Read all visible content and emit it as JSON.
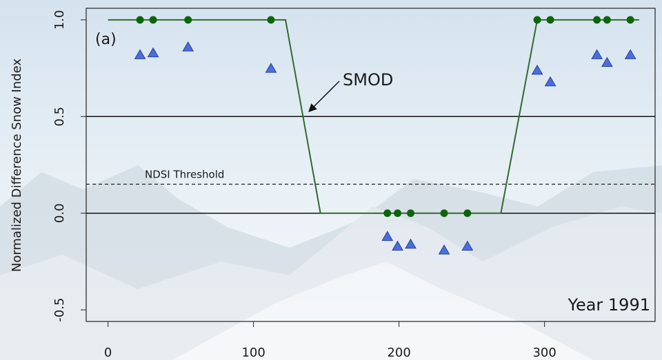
{
  "chart_data": {
    "type": "line",
    "ylabel": "Normalized Difference Snow Index",
    "panel_label": "(a)",
    "year_label": "Year 1991",
    "annotation": "SMOD",
    "threshold": {
      "label": "NDSI Threshold",
      "value": 0.15
    },
    "reference_lines": [
      0,
      0.5
    ],
    "xlim": [
      -15,
      376
    ],
    "ylim": [
      -0.56,
      1.06
    ],
    "xticks": [
      0,
      100,
      200,
      300
    ],
    "yticks": [
      -0.5,
      {
        "value": 0,
        "label": "0.0"
      },
      0.5,
      {
        "value": 1,
        "label": "1.0"
      }
    ],
    "series": [
      {
        "mark": "line",
        "color": "#2f6a2f",
        "x": [
          0,
          122,
          146,
          270,
          295,
          365
        ],
        "values": [
          1,
          1,
          0,
          0,
          1,
          1
        ]
      },
      {
        "mark": "circle",
        "color": "#0b650b",
        "x": [
          22,
          31,
          55,
          112,
          192,
          199,
          208,
          231,
          247,
          295,
          304,
          336,
          343,
          359
        ],
        "values": [
          1,
          1,
          1,
          1,
          0,
          0,
          0,
          0,
          0,
          1,
          1,
          1,
          1,
          1
        ]
      },
      {
        "mark": "triangle",
        "color": "#4a6ee0",
        "x": [
          22,
          31,
          55,
          112,
          192,
          199,
          208,
          231,
          247,
          295,
          304,
          336,
          343,
          359
        ],
        "values": [
          0.82,
          0.83,
          0.86,
          0.75,
          -0.12,
          -0.17,
          -0.16,
          -0.19,
          -0.17,
          0.74,
          0.68,
          0.82,
          0.78,
          0.82
        ]
      }
    ]
  }
}
